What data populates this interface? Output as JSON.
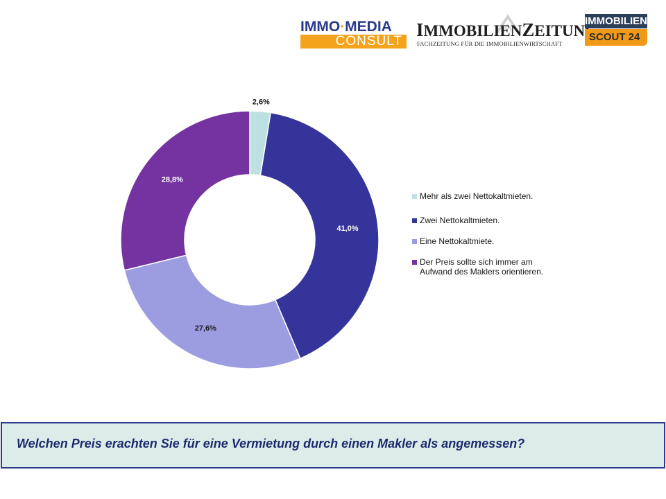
{
  "header": {
    "logo_imc_top": "IMMO",
    "logo_imc_dot": "·",
    "logo_imc_top2": "MEDIA",
    "logo_imc_bottom": "CONSULT",
    "logo_iz_first": "I",
    "logo_iz_mid": "MMOBILIEN",
    "logo_iz_second": "Z",
    "logo_iz_end": "EITUNG",
    "logo_iz_sub": "FACHZEITUNG FÜR DIE IMMOBILIENWIRTSCHAFT",
    "logo_is_top": "IMMOBILIEN",
    "logo_is_bottom": "SCOUT 24"
  },
  "colors": {
    "slice_1": "#bde0e2",
    "slice_2": "#35349a",
    "slice_3": "#9c9de0",
    "slice_4": "#7433a0",
    "question_text": "#1c2a6e",
    "question_bg": "#dcede9",
    "question_border": "#2e3a8c"
  },
  "chart_data": {
    "type": "pie",
    "variant": "donut",
    "categories": [
      "Mehr als zwei Nettokaltmieten.",
      "Zwei Nettokaltmieten.",
      "Eine Nettokaltmiete.",
      "Der Preis sollte sich immer am Aufwand des Maklers orientieren."
    ],
    "values": [
      2.6,
      41.0,
      27.6,
      28.8
    ],
    "data_labels": [
      "2,6%",
      "41,0%",
      "27,6%",
      "28,8%"
    ],
    "title": "",
    "legend_position": "right"
  },
  "legend": {
    "items": [
      {
        "line1": "Mehr als zwei Nettokaltmieten.",
        "line2": ""
      },
      {
        "line1": "Zwei Nettokaltmieten.",
        "line2": ""
      },
      {
        "line1": "Eine Nettokaltmiete.",
        "line2": ""
      },
      {
        "line1": "Der Preis sollte sich immer am",
        "line2": "Aufwand des Maklers orientieren."
      }
    ]
  },
  "question": {
    "text": "Welchen Preis erachten Sie für eine Vermietung durch einen Makler als angemessen?"
  }
}
